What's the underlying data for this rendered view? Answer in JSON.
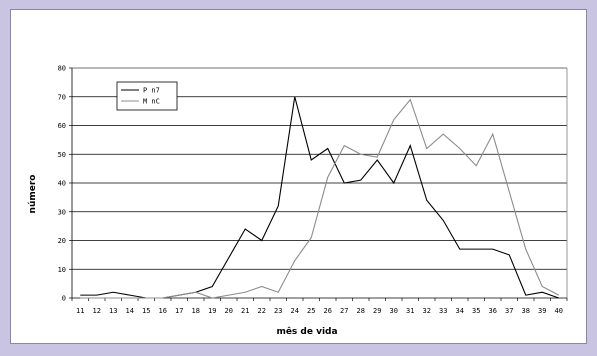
{
  "chart_data": {
    "type": "line",
    "xlabel": "mês de vida",
    "ylabel": "número",
    "ylim": [
      0,
      80
    ],
    "yticks": [
      0,
      10,
      20,
      30,
      40,
      50,
      60,
      70,
      80
    ],
    "x": [
      11,
      12,
      13,
      14,
      15,
      16,
      17,
      18,
      19,
      20,
      21,
      22,
      23,
      24,
      25,
      26,
      27,
      28,
      29,
      30,
      31,
      32,
      33,
      34,
      35,
      36,
      37,
      38,
      39,
      40
    ],
    "grid": true,
    "legend_position": "top-left",
    "series": [
      {
        "name": "P n7",
        "color": "#000000",
        "values": [
          1,
          1,
          2,
          1,
          0,
          0,
          1,
          2,
          4,
          14,
          24,
          20,
          32,
          70,
          48,
          52,
          40,
          41,
          48,
          40,
          53,
          34,
          27,
          17,
          17,
          17,
          15,
          1,
          2,
          0
        ]
      },
      {
        "name": "M nC",
        "color": "#8c8c8c",
        "values": [
          0,
          0,
          0,
          0,
          0,
          0,
          1,
          2,
          0,
          1,
          2,
          4,
          2,
          13,
          21,
          42,
          53,
          50,
          49,
          62,
          69,
          52,
          57,
          52,
          46,
          57,
          37,
          17,
          4,
          1
        ]
      }
    ]
  }
}
